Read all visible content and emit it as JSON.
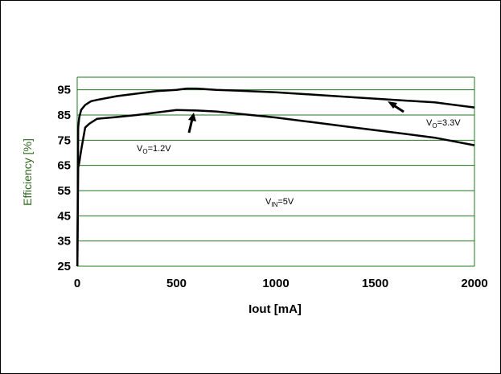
{
  "chart_data": {
    "type": "line",
    "xlabel": "Iout [mA]",
    "ylabel": "Efficiency [%]",
    "xlim": [
      0,
      2000
    ],
    "ylim": [
      25,
      100
    ],
    "xticks": [
      "0",
      "500",
      "1000",
      "1500",
      "2000"
    ],
    "yticks": [
      "25",
      "35",
      "45",
      "55",
      "65",
      "75",
      "85",
      "95"
    ],
    "grid": "horizontal",
    "colors": {
      "grid": "#1f7a1f",
      "series": "#000000",
      "ylabel": "#2e6b1f"
    },
    "series": [
      {
        "x": [
          1,
          5,
          10,
          20,
          40,
          70,
          100,
          200,
          300,
          400,
          500,
          550,
          600,
          700,
          800,
          1000,
          1200,
          1400,
          1600,
          1700,
          1800,
          2000
        ],
        "y": [
          25,
          80,
          84,
          87,
          89,
          90.5,
          91,
          92.5,
          93.5,
          94.5,
          95,
          95.5,
          95.5,
          95,
          94.7,
          94,
          93,
          92,
          91,
          90.5,
          90,
          88
        ]
      },
      {
        "x": [
          1,
          5,
          10,
          20,
          40,
          60,
          100,
          200,
          300,
          400,
          500,
          600,
          700,
          800,
          1000,
          1200,
          1400,
          1600,
          1800,
          2000
        ],
        "y": [
          25,
          64,
          66,
          71,
          80,
          81.5,
          83.5,
          84.2,
          85,
          86,
          87,
          86.8,
          86.4,
          85.6,
          84,
          82,
          80,
          78,
          76,
          73
        ]
      }
    ],
    "annotations": {
      "vo33": {
        "main": "V",
        "sub": "O",
        "rest": "=3.3V"
      },
      "vo12": {
        "main": "V",
        "sub": "O",
        "rest": "=1.2V"
      },
      "vin": {
        "main": "V",
        "sub": "IN",
        "rest": "=5V"
      }
    }
  }
}
